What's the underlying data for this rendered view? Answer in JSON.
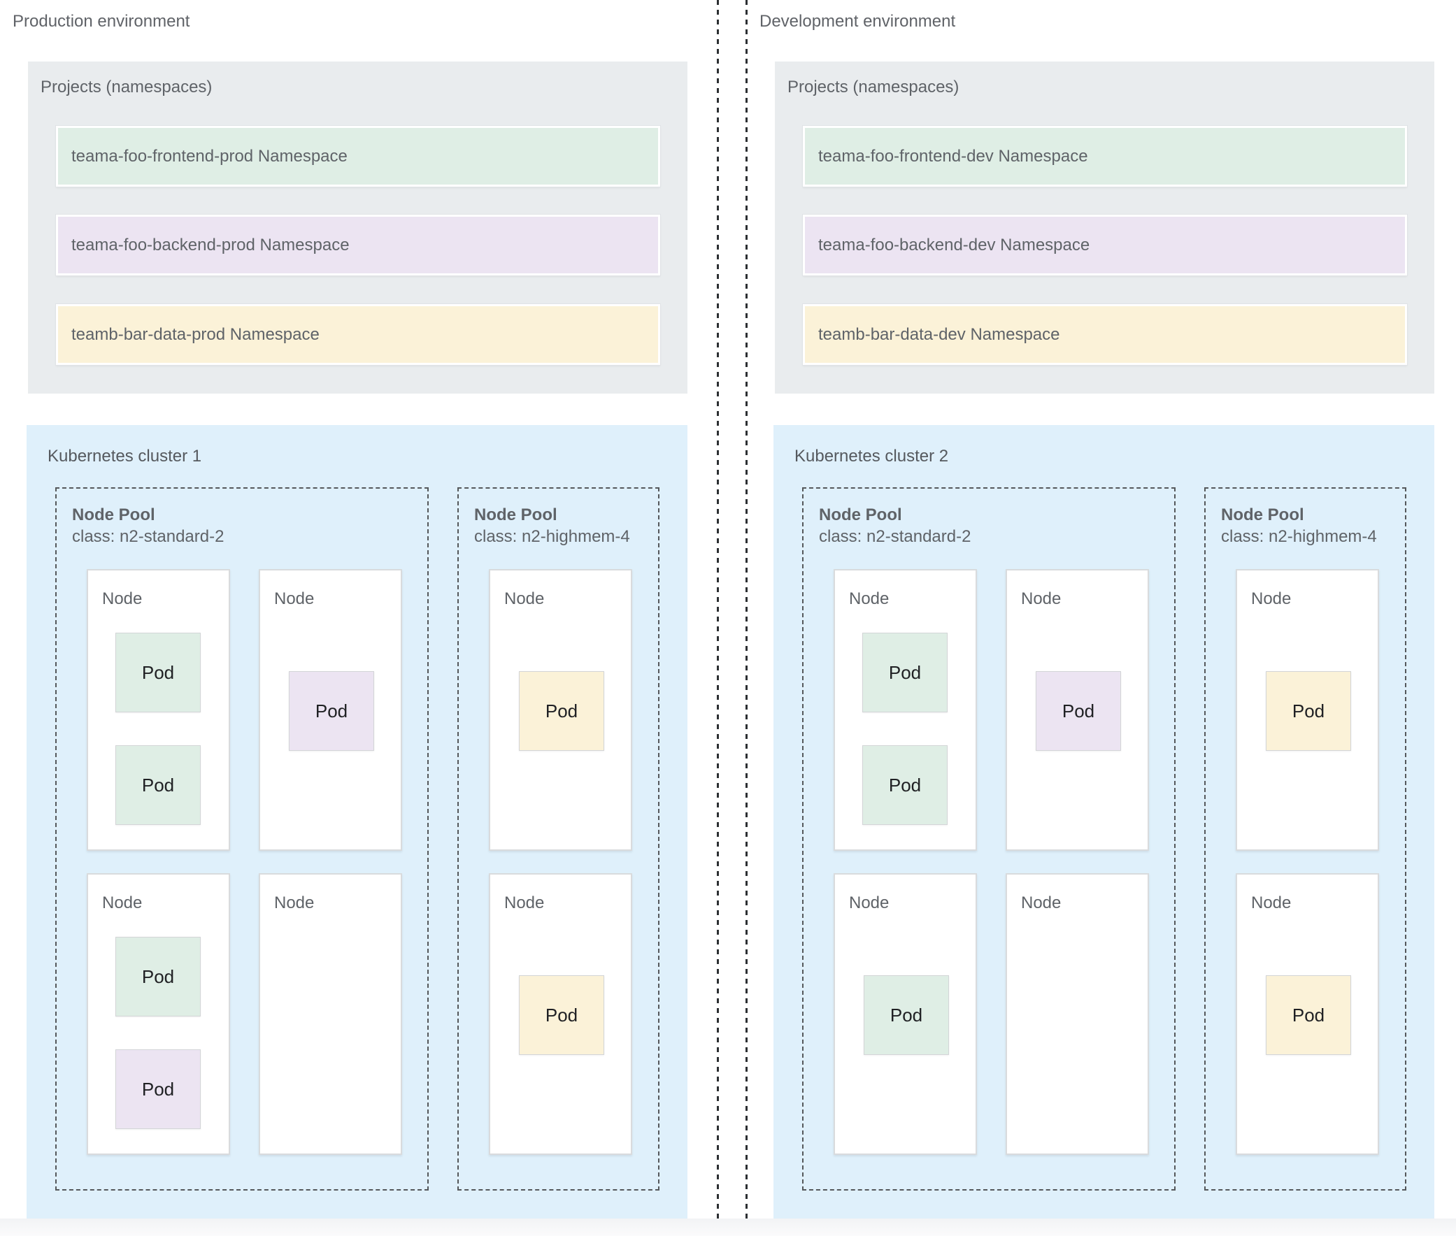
{
  "palette": {
    "namespace_green": "#dfeee5",
    "namespace_purple": "#ece4f2",
    "namespace_yellow": "#fbf2d8",
    "cluster_blue": "#dff0fb",
    "projects_gray": "#e9ecee",
    "label_gray": "#5f6368",
    "divider_black": "#2c2f32"
  },
  "environments": [
    {
      "title": "Production environment",
      "projects": {
        "label": "Projects (namespaces)",
        "namespaces": [
          {
            "label": "teama-foo-frontend-prod Namespace",
            "color": "#dfeee5"
          },
          {
            "label": "teama-foo-backend-prod Namespace",
            "color": "#ece4f2"
          },
          {
            "label": "teamb-bar-data-prod Namespace",
            "color": "#fbf2d8"
          }
        ]
      },
      "cluster": {
        "title": "Kubernetes cluster 1",
        "node_pools": [
          {
            "name": "Node Pool",
            "class_line": "class: n2-standard-2",
            "nodes": [
              {
                "label": "Node",
                "pods": [
                  {
                    "label": "Pod",
                    "color": "#dfeee5"
                  },
                  {
                    "label": "Pod",
                    "color": "#dfeee5"
                  }
                ]
              },
              {
                "label": "Node",
                "pods": [
                  {
                    "label": "Pod",
                    "color": "#ece4f2"
                  }
                ]
              },
              {
                "label": "Node",
                "pods": [
                  {
                    "label": "Pod",
                    "color": "#dfeee5"
                  },
                  {
                    "label": "Pod",
                    "color": "#ece4f2"
                  }
                ]
              },
              {
                "label": "Node",
                "pods": []
              }
            ]
          },
          {
            "name": "Node Pool",
            "class_line": "class: n2-highmem-4",
            "nodes": [
              {
                "label": "Node",
                "pods": [
                  {
                    "label": "Pod",
                    "color": "#fbf2d8"
                  }
                ]
              },
              {
                "label": "Node",
                "pods": [
                  {
                    "label": "Pod",
                    "color": "#fbf2d8"
                  }
                ]
              }
            ]
          }
        ]
      }
    },
    {
      "title": "Development environment",
      "projects": {
        "label": "Projects (namespaces)",
        "namespaces": [
          {
            "label": "teama-foo-frontend-dev Namespace",
            "color": "#dfeee5"
          },
          {
            "label": "teama-foo-backend-dev Namespace",
            "color": "#ece4f2"
          },
          {
            "label": "teamb-bar-data-dev Namespace",
            "color": "#fbf2d8"
          }
        ]
      },
      "cluster": {
        "title": "Kubernetes cluster 2",
        "node_pools": [
          {
            "name": "Node Pool",
            "class_line": "class: n2-standard-2",
            "nodes": [
              {
                "label": "Node",
                "pods": [
                  {
                    "label": "Pod",
                    "color": "#dfeee5"
                  },
                  {
                    "label": "Pod",
                    "color": "#dfeee5"
                  }
                ]
              },
              {
                "label": "Node",
                "pods": [
                  {
                    "label": "Pod",
                    "color": "#ece4f2"
                  }
                ]
              },
              {
                "label": "Node",
                "pods": [
                  {
                    "label": "Pod",
                    "color": "#dfeee5"
                  }
                ]
              },
              {
                "label": "Node",
                "pods": []
              }
            ]
          },
          {
            "name": "Node Pool",
            "class_line": "class: n2-highmem-4",
            "nodes": [
              {
                "label": "Node",
                "pods": [
                  {
                    "label": "Pod",
                    "color": "#fbf2d8"
                  }
                ]
              },
              {
                "label": "Node",
                "pods": [
                  {
                    "label": "Pod",
                    "color": "#fbf2d8"
                  }
                ]
              }
            ]
          }
        ]
      }
    }
  ]
}
